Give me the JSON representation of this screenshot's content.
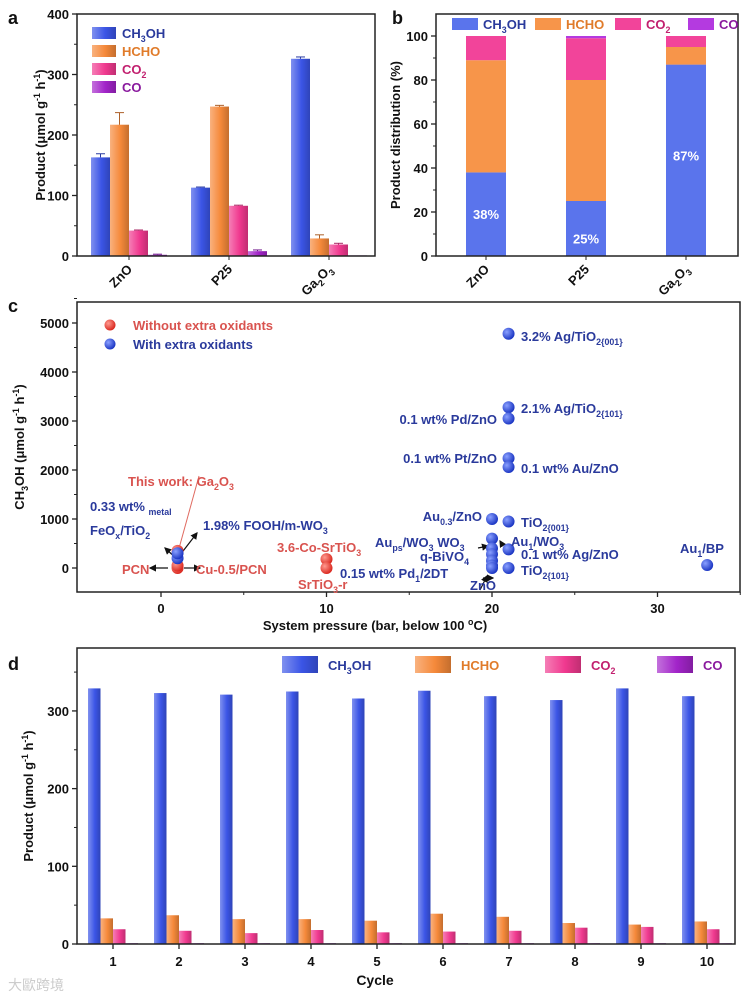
{
  "panel_letters": [
    "a",
    "b",
    "c",
    "d"
  ],
  "watermark": "大歐跨境",
  "colors": {
    "CH3OH": "#3b55e6",
    "HCHO": "#f5893a",
    "CO2": "#f0398f",
    "CO": "#a224c9",
    "CH3OH_text": "#2a3a9c",
    "HCHO_text": "#e07b2a",
    "CO2_text": "#c2206f",
    "CO_text": "#8a1a9e",
    "red": "#e0443a",
    "red_text": "#d9534f",
    "blue_text": "#2a3a9c"
  },
  "chart_data": [
    {
      "id": "a",
      "type": "bar",
      "categories": [
        "ZnO",
        "P25",
        "Ga_[2]O_[3]"
      ],
      "series": [
        {
          "name": "CH_[3]OH",
          "values": [
            163,
            113,
            326
          ],
          "errors": [
            6,
            1,
            3
          ]
        },
        {
          "name": "HCHO",
          "values": [
            217,
            247,
            29
          ],
          "errors": [
            20,
            2,
            6
          ]
        },
        {
          "name": "CO_[2]",
          "values": [
            42,
            83,
            19
          ],
          "errors": [
            1,
            1,
            2
          ]
        },
        {
          "name": "CO",
          "values": [
            2,
            8,
            1
          ],
          "errors": [
            1,
            2,
            0
          ]
        }
      ],
      "xlabel": "",
      "ylabel": "Product  (μmol g^[-1] h^[-1])",
      "ylim": [
        0,
        400
      ],
      "yticks": [
        "0",
        "100",
        "200",
        "300",
        "400"
      ],
      "legend": "top-left"
    },
    {
      "id": "b",
      "type": "bar",
      "stacked": true,
      "categories": [
        "ZnO",
        "P25",
        "Ga_[2]O_[3]"
      ],
      "series": [
        {
          "name": "CH_[3]OH",
          "values": [
            38,
            25,
            87
          ]
        },
        {
          "name": "HCHO",
          "values": [
            51,
            55,
            8
          ]
        },
        {
          "name": "CO_[2]",
          "values": [
            11,
            19,
            5
          ]
        },
        {
          "name": "CO",
          "values": [
            0,
            1,
            0
          ]
        }
      ],
      "data_labels": [
        "38%",
        "25%",
        "87%"
      ],
      "xlabel": "",
      "ylabel": "Product distribution (%)",
      "ylim": [
        0,
        110
      ],
      "yticks": [
        "0",
        "20",
        "40",
        "60",
        "80",
        "100"
      ],
      "legend": "top"
    },
    {
      "id": "c",
      "type": "scatter",
      "series": [
        {
          "name": "Without extra oxidants",
          "points": [
            [
              1,
              0
            ],
            [
              1,
              50
            ],
            [
              1,
              350
            ],
            [
              10,
              180
            ],
            [
              10,
              0
            ]
          ]
        },
        {
          "name": "With extra oxidants",
          "points": [
            [
              1,
              200
            ],
            [
              1,
              300
            ],
            [
              20,
              1000
            ],
            [
              20,
              600
            ],
            [
              20,
              400
            ],
            [
              20,
              280
            ],
            [
              20,
              150
            ],
            [
              20,
              50
            ],
            [
              20,
              0
            ],
            [
              21,
              4780
            ],
            [
              21,
              3280
            ],
            [
              21,
              3050
            ],
            [
              21,
              2240
            ],
            [
              21,
              2060
            ],
            [
              21,
              950
            ],
            [
              21,
              380
            ],
            [
              21,
              0
            ],
            [
              33,
              60
            ]
          ]
        }
      ],
      "annotations": [
        {
          "text": "3.2% Ag/TiO_[2{001}]",
          "group": "blue"
        },
        {
          "text": "2.1% Ag/TiO_[2{101}]",
          "group": "blue"
        },
        {
          "text": "0.1 wt% Pd/ZnO",
          "group": "blue"
        },
        {
          "text": "0.1 wt% Pt/ZnO",
          "group": "blue"
        },
        {
          "text": "0.1 wt% Au/ZnO",
          "group": "blue"
        },
        {
          "text": "This work: Ga_[2]O_[3]",
          "group": "red"
        },
        {
          "text": "0.33 wt% _[metal]",
          "group": "blue"
        },
        {
          "text": "FeO_[x]/TiO_[2]",
          "group": "blue"
        },
        {
          "text": "1.98% FOOH/m-WO_[3]",
          "group": "blue"
        },
        {
          "text": "3.6-Co-SrTiO_[3]",
          "group": "red"
        },
        {
          "text": "Au_[ps]/WO_[3] WO_[3]",
          "group": "blue"
        },
        {
          "text": "Au_[1]/WO_[3]",
          "group": "blue"
        },
        {
          "text": "q-BiVO_[4]",
          "group": "blue"
        },
        {
          "text": "0.1 wt% Ag/ZnO",
          "group": "blue"
        },
        {
          "text": "PCN",
          "group": "red"
        },
        {
          "text": "Cu-0.5/PCN",
          "group": "red"
        },
        {
          "text": "0.15 wt% Pd_[1]/2DT",
          "group": "blue"
        },
        {
          "text": "TiO_[2{101}]",
          "group": "blue"
        },
        {
          "text": "SrTiO_[3]-r",
          "group": "red"
        },
        {
          "text": "ZnO",
          "group": "blue"
        },
        {
          "text": "TiO_[2{001}]",
          "group": "blue"
        },
        {
          "text": "Au_[0.3]/ZnO",
          "group": "blue"
        },
        {
          "text": "Au_[1]/BP",
          "group": "blue"
        }
      ],
      "xlabel": "System pressure (bar, below 100 ^[o]C)",
      "ylabel": "CH_[3]OH  (μmol g^[-1] h^[-1])",
      "xlim": [
        -5,
        35
      ],
      "ylim": [
        -500,
        5430
      ],
      "xticks": [
        "0",
        "10",
        "20",
        "30"
      ],
      "yticks": [
        "0",
        "1000",
        "2000",
        "3000",
        "4000",
        "5000"
      ],
      "legend": "top-left"
    },
    {
      "id": "d",
      "type": "bar",
      "categories": [
        "1",
        "2",
        "3",
        "4",
        "5",
        "6",
        "7",
        "8",
        "9",
        "10"
      ],
      "series": [
        {
          "name": "CH_[3]OH",
          "values": [
            329,
            323,
            321,
            325,
            316,
            326,
            319,
            314,
            329,
            319
          ]
        },
        {
          "name": "HCHO",
          "values": [
            33,
            37,
            32,
            32,
            30,
            39,
            35,
            27,
            25,
            29
          ]
        },
        {
          "name": "CO_[2]",
          "values": [
            19,
            17,
            14,
            18,
            15,
            16,
            17,
            21,
            22,
            19
          ]
        },
        {
          "name": "CO",
          "values": [
            1,
            1,
            1,
            1,
            1,
            1,
            1,
            1,
            1,
            1
          ]
        }
      ],
      "xlabel": "Cycle",
      "ylabel": "Product (μmol g^[-1] h^[-1])",
      "ylim": [
        0,
        381
      ],
      "yticks": [
        "0",
        "100",
        "200",
        "300"
      ],
      "legend": "top"
    }
  ]
}
